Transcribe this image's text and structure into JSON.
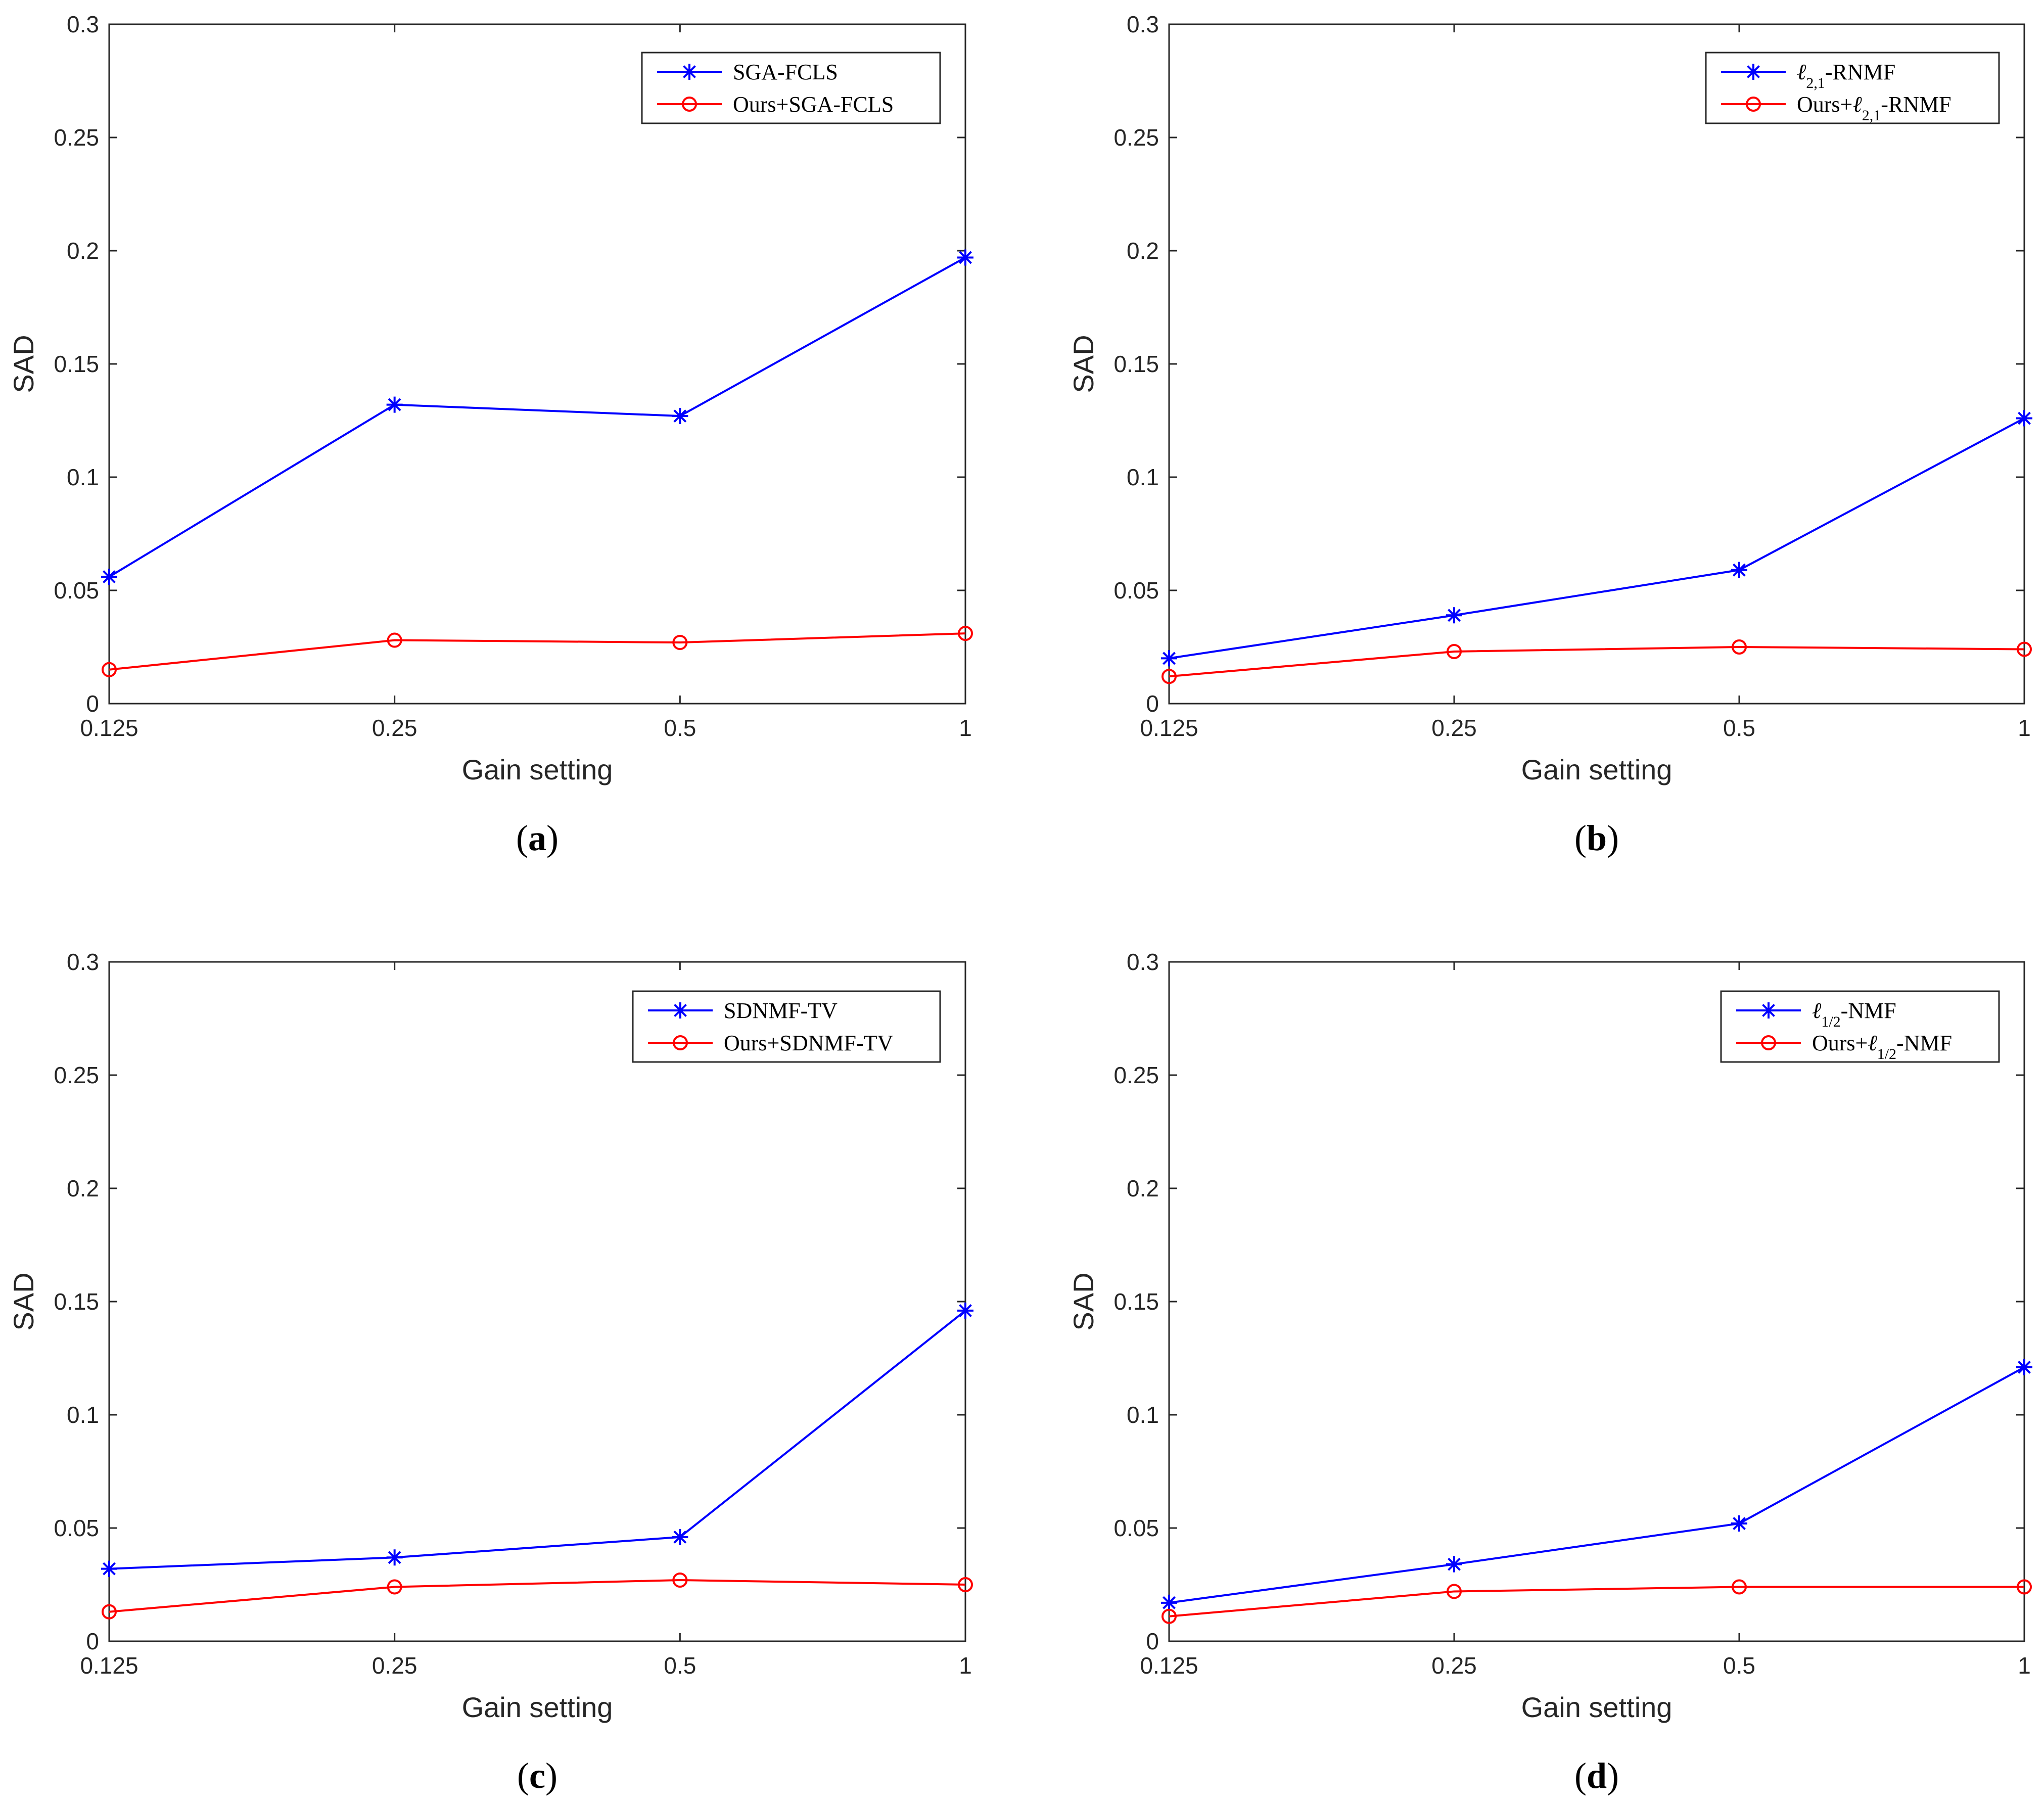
{
  "colors": {
    "method": "#0000ff",
    "ours": "#ff0000",
    "axis": "#262626"
  },
  "chart_data": [
    {
      "type": "line",
      "caption_letter": "a",
      "xlabel": "Gain setting",
      "ylabel": "SAD",
      "categories": [
        "0.125",
        "0.25",
        "0.5",
        "1"
      ],
      "ylim": [
        0,
        0.3
      ],
      "yticks": [
        "0",
        "0.05",
        "0.1",
        "0.15",
        "0.2",
        "0.25",
        "0.3"
      ],
      "legend_position": "top-right",
      "series": [
        {
          "name": "SGA-FCLS",
          "marker": "asterisk",
          "color": "#0000ff",
          "values": [
            0.056,
            0.132,
            0.127,
            0.197
          ]
        },
        {
          "name": "Ours+SGA-FCLS",
          "marker": "circle",
          "color": "#ff0000",
          "values": [
            0.015,
            0.028,
            0.027,
            0.031
          ]
        }
      ]
    },
    {
      "type": "line",
      "caption_letter": "b",
      "xlabel": "Gain setting",
      "ylabel": "SAD",
      "categories": [
        "0.125",
        "0.25",
        "0.5",
        "1"
      ],
      "ylim": [
        0,
        0.3
      ],
      "yticks": [
        "0",
        "0.05",
        "0.1",
        "0.15",
        "0.2",
        "0.25",
        "0.3"
      ],
      "legend_position": "top-right",
      "series": [
        {
          "name": "ℓ2,1-RNMF",
          "marker": "asterisk",
          "color": "#0000ff",
          "values": [
            0.02,
            0.039,
            0.059,
            0.126
          ]
        },
        {
          "name": "Ours+ℓ2,1-RNMF",
          "marker": "circle",
          "color": "#ff0000",
          "values": [
            0.012,
            0.023,
            0.025,
            0.024
          ]
        }
      ]
    },
    {
      "type": "line",
      "caption_letter": "c",
      "xlabel": "Gain setting",
      "ylabel": "SAD",
      "categories": [
        "0.125",
        "0.25",
        "0.5",
        "1"
      ],
      "ylim": [
        0,
        0.3
      ],
      "yticks": [
        "0",
        "0.05",
        "0.1",
        "0.15",
        "0.2",
        "0.25",
        "0.3"
      ],
      "legend_position": "top-right",
      "series": [
        {
          "name": "SDNMF-TV",
          "marker": "asterisk",
          "color": "#0000ff",
          "values": [
            0.032,
            0.037,
            0.046,
            0.146
          ]
        },
        {
          "name": "Ours+SDNMF-TV",
          "marker": "circle",
          "color": "#ff0000",
          "values": [
            0.013,
            0.024,
            0.027,
            0.025
          ]
        }
      ]
    },
    {
      "type": "line",
      "caption_letter": "d",
      "xlabel": "Gain setting",
      "ylabel": "SAD",
      "categories": [
        "0.125",
        "0.25",
        "0.5",
        "1"
      ],
      "ylim": [
        0,
        0.3
      ],
      "yticks": [
        "0",
        "0.05",
        "0.1",
        "0.15",
        "0.2",
        "0.25",
        "0.3"
      ],
      "legend_position": "top-right",
      "series": [
        {
          "name": "ℓ1/2-NMF",
          "marker": "asterisk",
          "color": "#0000ff",
          "values": [
            0.017,
            0.034,
            0.052,
            0.121
          ]
        },
        {
          "name": "Ours+ℓ1/2-NMF",
          "marker": "circle",
          "color": "#ff0000",
          "values": [
            0.011,
            0.022,
            0.024,
            0.024
          ]
        }
      ]
    }
  ]
}
